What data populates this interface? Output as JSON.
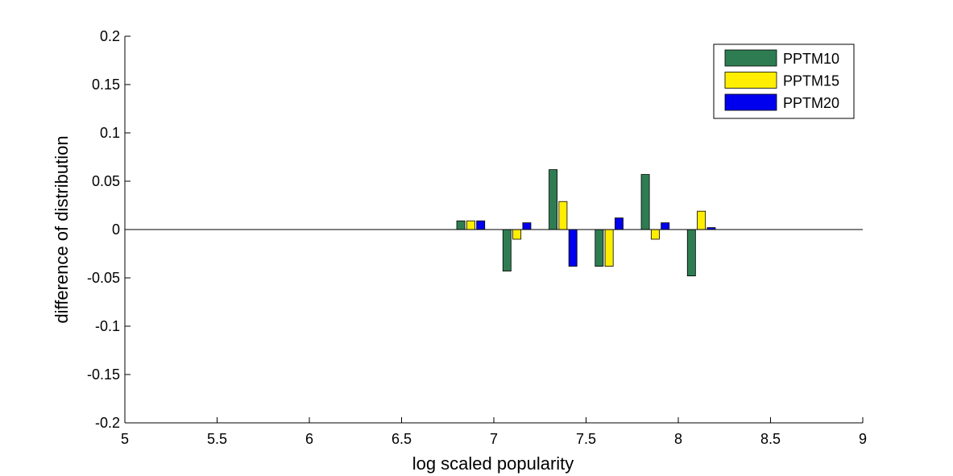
{
  "chart_data": {
    "type": "bar",
    "xlabel": "log scaled popularity",
    "ylabel": "difference of distribution",
    "xlim": [
      5,
      9
    ],
    "ylim": [
      -0.2,
      0.2
    ],
    "x_ticks": [
      "5",
      "5.5",
      "6",
      "6.5",
      "7",
      "7.5",
      "8",
      "8.5",
      "9"
    ],
    "y_ticks": [
      "-0.2",
      "-0.15",
      "-0.1",
      "-0.05",
      "0",
      "0.05",
      "0.1",
      "0.15",
      "0.2"
    ],
    "grid": false,
    "legend_position": "top-right",
    "x": [
      6.875,
      7.125,
      7.375,
      7.625,
      7.875,
      8.125
    ],
    "series": [
      {
        "name": "PPTM10",
        "color": "#2e7d52",
        "values": [
          0.009,
          -0.043,
          0.062,
          -0.038,
          0.057,
          -0.048
        ]
      },
      {
        "name": "PPTM15",
        "color": "#ffee00",
        "values": [
          0.009,
          -0.01,
          0.029,
          -0.038,
          -0.01,
          0.019
        ]
      },
      {
        "name": "PPTM20",
        "color": "#0000ee",
        "values": [
          0.009,
          0.007,
          -0.038,
          0.012,
          0.007,
          0.002
        ]
      }
    ]
  }
}
